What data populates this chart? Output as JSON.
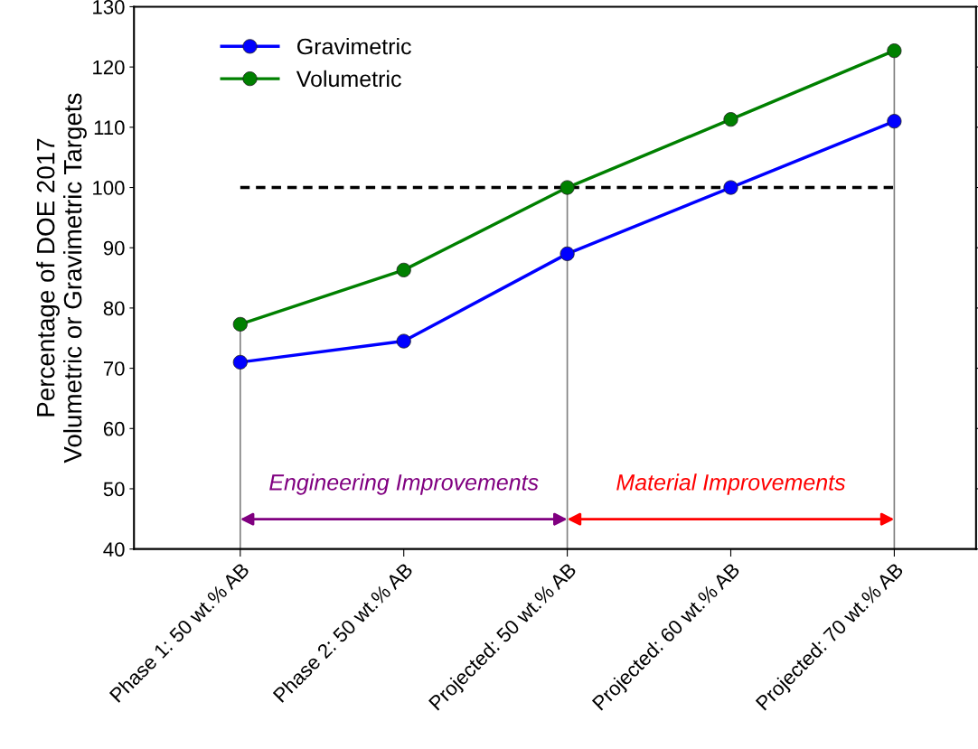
{
  "chart_data": {
    "type": "line",
    "ylabel": "Percentage of DOE 2017\nVolumetric or Gravimetric Targets",
    "categories": [
      "Phase 1: 50 wt.% AB",
      "Phase 2: 50 wt.% AB",
      "Projected: 50 wt.% AB",
      "Projected: 60 wt.% AB",
      "Projected: 70 wt.% AB"
    ],
    "series": [
      {
        "name": "Gravimetric",
        "color": "#0000ff",
        "values": [
          71,
          74.5,
          89,
          100,
          111
        ]
      },
      {
        "name": "Volumetric",
        "color": "#008000",
        "values": [
          77.3,
          86.3,
          100,
          111.3,
          122.7
        ]
      }
    ],
    "ylim": [
      40,
      130
    ],
    "yticks": [
      40,
      50,
      60,
      70,
      80,
      90,
      100,
      110,
      120,
      130
    ],
    "ref_lines": [
      {
        "axis": "y",
        "value": 100,
        "color": "#000000",
        "line_style": "dashed"
      },
      {
        "axis": "x",
        "value": "Phase 1: 50 wt.% AB",
        "color": "#808080"
      },
      {
        "axis": "x",
        "value": "Projected: 50 wt.% AB",
        "color": "#808080"
      },
      {
        "axis": "x",
        "value": "Projected: 70 wt.% AB",
        "color": "#808080"
      }
    ],
    "annotations": [
      "Engineering Improvements",
      "Material Improvements"
    ],
    "legend": "top left",
    "marker": "circle",
    "line_style": "solid",
    "grid": false
  }
}
